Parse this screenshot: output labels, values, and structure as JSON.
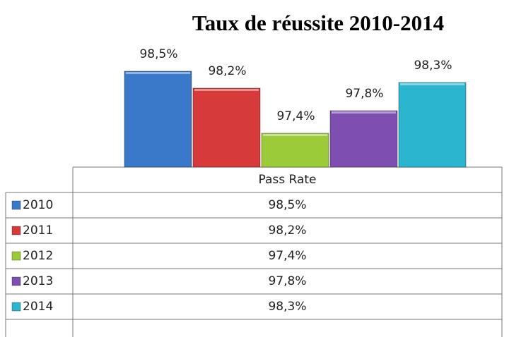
{
  "chart_data": {
    "type": "bar",
    "title": "Taux de réussite 2010-2014",
    "categories": [
      "Pass Rate"
    ],
    "series": [
      {
        "name": "2010",
        "color": "#3a78c9",
        "values": [
          98.5
        ],
        "value_labels": [
          "98,5%"
        ]
      },
      {
        "name": "2011",
        "color": "#d63a3a",
        "values": [
          98.2
        ],
        "value_labels": [
          "98,2%"
        ]
      },
      {
        "name": "2012",
        "color": "#9ccb3a",
        "values": [
          97.4
        ],
        "value_labels": [
          "97,4%"
        ]
      },
      {
        "name": "2013",
        "color": "#7e4fb0",
        "values": [
          97.8
        ],
        "value_labels": [
          "97,8%"
        ]
      },
      {
        "name": "2014",
        "color": "#2bb5cf",
        "values": [
          98.3
        ],
        "value_labels": [
          "98,3%"
        ]
      }
    ],
    "ylim": [
      96.8,
      98.8
    ]
  }
}
